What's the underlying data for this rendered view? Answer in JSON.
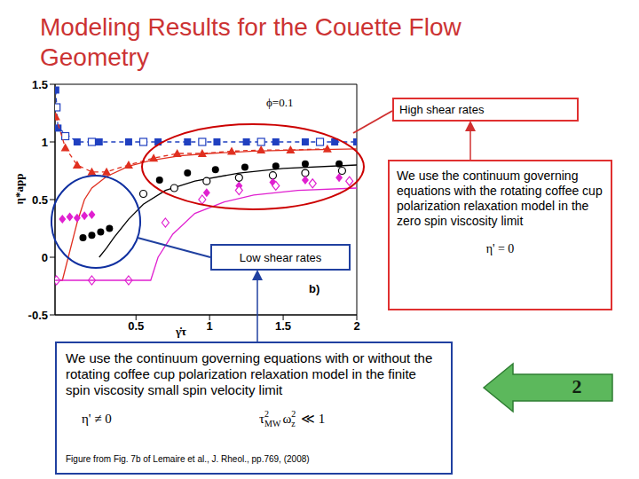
{
  "title": "Modeling Results for the Couette Flow Geometry",
  "callouts": {
    "high_shear": "High shear rates",
    "low_shear": "Low shear rates",
    "high_model": "We use the continuum governing equations with the rotating coffee cup polarization relaxation model in the zero spin viscosity limit",
    "high_formula": "η' = 0",
    "low_model": "We use the continuum governing equations with or without the rotating coffee cup polarization relaxation model in the finite spin viscosity small spin velocity limit",
    "low_formula_1": "η' ≠ 0",
    "low_formula_2": [
      {
        "text": "τ"
      },
      {
        "sup": "2",
        "sub": "MW"
      },
      {
        "text": "ω"
      },
      {
        "sup": "2",
        "sub": "z"
      },
      {
        "text": " ≪ 1"
      }
    ],
    "caption": "Figure from Fig. 7b of Lemaire et al., J. Rheol., pp.769, (2008)",
    "slide_number": 2
  },
  "chart_data": {
    "type": "scatter",
    "x_label": "γ̇τ",
    "y_label": "η*app",
    "annotations": [
      "ϕ=0.1",
      "b)"
    ],
    "xlim": [
      -0.05,
      2
    ],
    "xticks": [
      0.5,
      1,
      1.5,
      2
    ],
    "ylim": [
      -0.5,
      1.5
    ],
    "yticks": [
      -0.5,
      0,
      0.5,
      1,
      1.5
    ],
    "grid": false,
    "series": [
      {
        "color": "#2040c0",
        "marker": "square",
        "line_style": "dashed",
        "x": [
          -0.045,
          -0.03,
          0.1,
          0.25,
          0.45,
          0.65,
          0.85,
          1.05,
          1.25,
          1.45,
          1.65,
          1.85,
          2.0
        ],
        "values": [
          1.45,
          1.12,
          1.0,
          1.0,
          1.0,
          1.0,
          1.0,
          1.0,
          1.0,
          1.0,
          1.0,
          1.0,
          1.0
        ]
      },
      {
        "color": "#2040c0",
        "marker": "open_square",
        "line_style": "none",
        "x": [
          -0.04,
          0.02,
          0.2,
          0.55,
          0.95,
          1.35,
          1.75
        ],
        "values": [
          1.3,
          1.05,
          1.0,
          1.0,
          1.0,
          1.0,
          1.0
        ]
      },
      {
        "color": "#e03020",
        "marker": "triangle",
        "line_style": "dashed",
        "x": [
          -0.045,
          0.02,
          0.1,
          0.2,
          0.3,
          0.45,
          0.62,
          0.78,
          0.95,
          1.15,
          1.35,
          1.55,
          1.8
        ],
        "values": [
          1.22,
          0.95,
          0.8,
          0.74,
          0.74,
          0.8,
          0.86,
          0.9,
          0.9,
          0.92,
          0.93,
          0.93,
          0.94
        ]
      },
      {
        "color": "#e03020",
        "marker": "none",
        "line_style": "solid",
        "x": [
          -0.05,
          0.0,
          0.05,
          0.1,
          0.15,
          0.2,
          0.3,
          0.45,
          0.6,
          0.8,
          1.0,
          1.3,
          1.6,
          2.0
        ],
        "values": [
          -0.2,
          -0.2,
          0.05,
          0.3,
          0.5,
          0.6,
          0.7,
          0.79,
          0.84,
          0.88,
          0.9,
          0.92,
          0.93,
          0.94
        ]
      },
      {
        "color": "#000000",
        "marker": "circle",
        "line_style": "none",
        "x": [
          0.14,
          0.2,
          0.26,
          0.32,
          0.66,
          0.85,
          1.04,
          1.24,
          1.45,
          1.65,
          1.88
        ],
        "values": [
          0.17,
          0.19,
          0.22,
          0.25,
          0.67,
          0.73,
          0.76,
          0.78,
          0.79,
          0.81,
          0.81
        ]
      },
      {
        "color": "#000000",
        "marker": "none",
        "line_style": "solid",
        "x": [
          0.25,
          0.3,
          0.35,
          0.45,
          0.55,
          0.7,
          0.9,
          1.2,
          1.5,
          2.0
        ],
        "values": [
          0.0,
          0.08,
          0.17,
          0.33,
          0.46,
          0.58,
          0.66,
          0.73,
          0.77,
          0.8
        ]
      },
      {
        "color": "#000000",
        "marker": "open_circle",
        "line_style": "none",
        "x": [
          0.55,
          0.76,
          0.98,
          1.2,
          1.43,
          1.65,
          1.9
        ],
        "values": [
          0.55,
          0.6,
          0.66,
          0.69,
          0.71,
          0.73,
          0.75
        ]
      },
      {
        "color": "#e020d0",
        "marker": "diamond",
        "line_style": "none",
        "x": [
          0.0,
          0.05,
          0.1,
          0.15,
          0.2,
          0.98,
          1.2,
          1.43,
          1.65,
          1.88
        ],
        "values": [
          0.33,
          0.35,
          0.34,
          0.36,
          0.37,
          0.56,
          0.62,
          0.65,
          0.67,
          0.69
        ]
      },
      {
        "color": "#e020d0",
        "marker": "open_diamond",
        "line_style": "none",
        "x": [
          -0.04,
          0.2,
          0.45,
          0.7,
          0.95,
          1.2,
          1.45,
          1.7,
          1.95
        ],
        "values": [
          -0.2,
          -0.2,
          -0.2,
          0.3,
          0.5,
          0.58,
          0.62,
          0.64,
          0.66
        ]
      },
      {
        "color": "#e020d0",
        "marker": "none",
        "line_style": "solid",
        "x": [
          -0.05,
          0.6,
          0.65,
          0.75,
          0.9,
          1.1,
          1.3,
          1.6,
          2.0
        ],
        "values": [
          -0.2,
          -0.2,
          0.0,
          0.2,
          0.38,
          0.48,
          0.54,
          0.58,
          0.6
        ]
      }
    ]
  }
}
